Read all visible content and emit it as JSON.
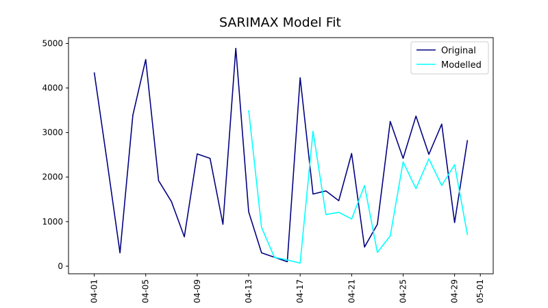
{
  "chart_data": {
    "type": "line",
    "title": "SARIMAX Model Fit",
    "xlabel": "",
    "ylabel": "",
    "x_tick_labels": [
      "04-01",
      "04-05",
      "04-09",
      "04-13",
      "04-17",
      "04-21",
      "04-25",
      "04-29",
      "05-01"
    ],
    "y_tick_labels": [
      "0",
      "1000",
      "2000",
      "3000",
      "4000",
      "5000"
    ],
    "x_tick_values": [
      "2023-04-01",
      "2023-04-05",
      "2023-04-09",
      "2023-04-13",
      "2023-04-17",
      "2023-04-21",
      "2023-04-25",
      "2023-04-29",
      "2023-05-01"
    ],
    "y_tick_values": [
      0,
      1000,
      2000,
      3000,
      4000,
      5000
    ],
    "xlim": [
      "2023-03-30",
      "2023-05-02"
    ],
    "ylim": [
      -170,
      5130
    ],
    "grid": false,
    "legend_position": "top-right",
    "series": [
      {
        "name": "Original",
        "color": "#000080",
        "x": [
          "2023-04-01",
          "2023-04-02",
          "2023-04-03",
          "2023-04-04",
          "2023-04-05",
          "2023-04-06",
          "2023-04-07",
          "2023-04-08",
          "2023-04-09",
          "2023-04-10",
          "2023-04-11",
          "2023-04-12",
          "2023-04-13",
          "2023-04-14",
          "2023-04-15",
          "2023-04-16",
          "2023-04-17",
          "2023-04-18",
          "2023-04-19",
          "2023-04-20",
          "2023-04-21",
          "2023-04-22",
          "2023-04-23",
          "2023-04-24",
          "2023-04-25",
          "2023-04-26",
          "2023-04-27",
          "2023-04-28",
          "2023-04-29",
          "2023-04-30"
        ],
        "y": [
          4350,
          2350,
          300,
          3390,
          4640,
          1920,
          1450,
          660,
          2520,
          2420,
          940,
          4890,
          1220,
          300,
          200,
          100,
          4230,
          1620,
          1690,
          1470,
          2530,
          430,
          940,
          3250,
          2420,
          3370,
          2510,
          3190,
          980,
          2830
        ]
      },
      {
        "name": "Modelled",
        "color": "#00FFFF",
        "x": [
          "2023-04-13",
          "2023-04-14",
          "2023-04-15",
          "2023-04-16",
          "2023-04-17",
          "2023-04-18",
          "2023-04-19",
          "2023-04-20",
          "2023-04-21",
          "2023-04-22",
          "2023-04-23",
          "2023-04-24",
          "2023-04-25",
          "2023-04-26",
          "2023-04-27",
          "2023-04-28",
          "2023-04-29",
          "2023-04-30"
        ],
        "y": [
          3500,
          870,
          200,
          140,
          70,
          3030,
          1160,
          1210,
          1060,
          1810,
          310,
          680,
          2340,
          1740,
          2410,
          1810,
          2280,
          700
        ]
      }
    ]
  }
}
